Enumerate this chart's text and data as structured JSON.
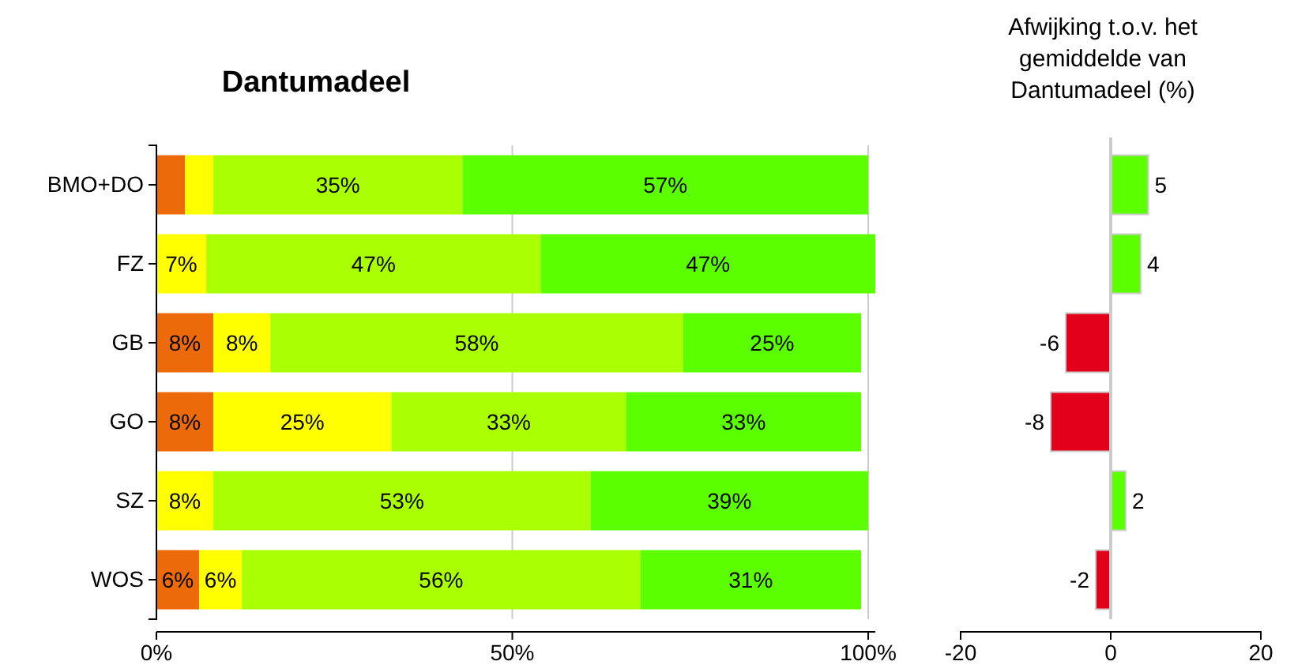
{
  "chart_data": [
    {
      "type": "bar",
      "title": "Dantumadeel",
      "orientation": "horizontal",
      "stacked": true,
      "categories": [
        "BMO+DO",
        "FZ",
        "GB",
        "GO",
        "SZ",
        "WOS"
      ],
      "xlim": [
        0,
        101
      ],
      "xticks": [
        {
          "value": 0,
          "label": "0%"
        },
        {
          "value": 50,
          "label": "50%"
        },
        {
          "value": 100,
          "label": "100%"
        }
      ],
      "grid": "x",
      "series": [
        {
          "color": "#ec6a0a",
          "values": [
            4,
            0,
            8,
            8,
            0,
            6
          ],
          "value_labels": [
            null,
            null,
            "8%",
            "8%",
            null,
            "6%"
          ]
        },
        {
          "color": "#ffff00",
          "values": [
            4,
            7,
            8,
            25,
            8,
            6
          ],
          "value_labels": [
            null,
            "7%",
            "8%",
            "25%",
            "8%",
            "6%"
          ]
        },
        {
          "color": "#aaff00",
          "values": [
            35,
            47,
            58,
            33,
            53,
            56
          ],
          "value_labels": [
            "35%",
            "47%",
            "58%",
            "33%",
            "53%",
            "56%"
          ]
        },
        {
          "color": "#5cff00",
          "values": [
            57,
            47,
            25,
            33,
            39,
            31
          ],
          "value_labels": [
            "57%",
            "47%",
            "25%",
            "33%",
            "39%",
            "31%"
          ]
        }
      ]
    },
    {
      "type": "bar",
      "title": "Afwijking t.o.v. het gemiddelde van Dantumadeel (%)",
      "orientation": "horizontal",
      "categories": [
        null,
        null,
        null,
        null,
        null,
        null
      ],
      "tick_labels": "x",
      "xlim": [
        -20,
        20
      ],
      "xticks": [
        -20,
        0,
        20
      ],
      "data_labels": true,
      "values": [
        5,
        4,
        -6,
        -8,
        2,
        -2
      ],
      "colors": [
        "#5cff00",
        "#5cff00",
        "#e3001b",
        "#e3001b",
        "#5cff00",
        "#e3001b"
      ]
    }
  ]
}
